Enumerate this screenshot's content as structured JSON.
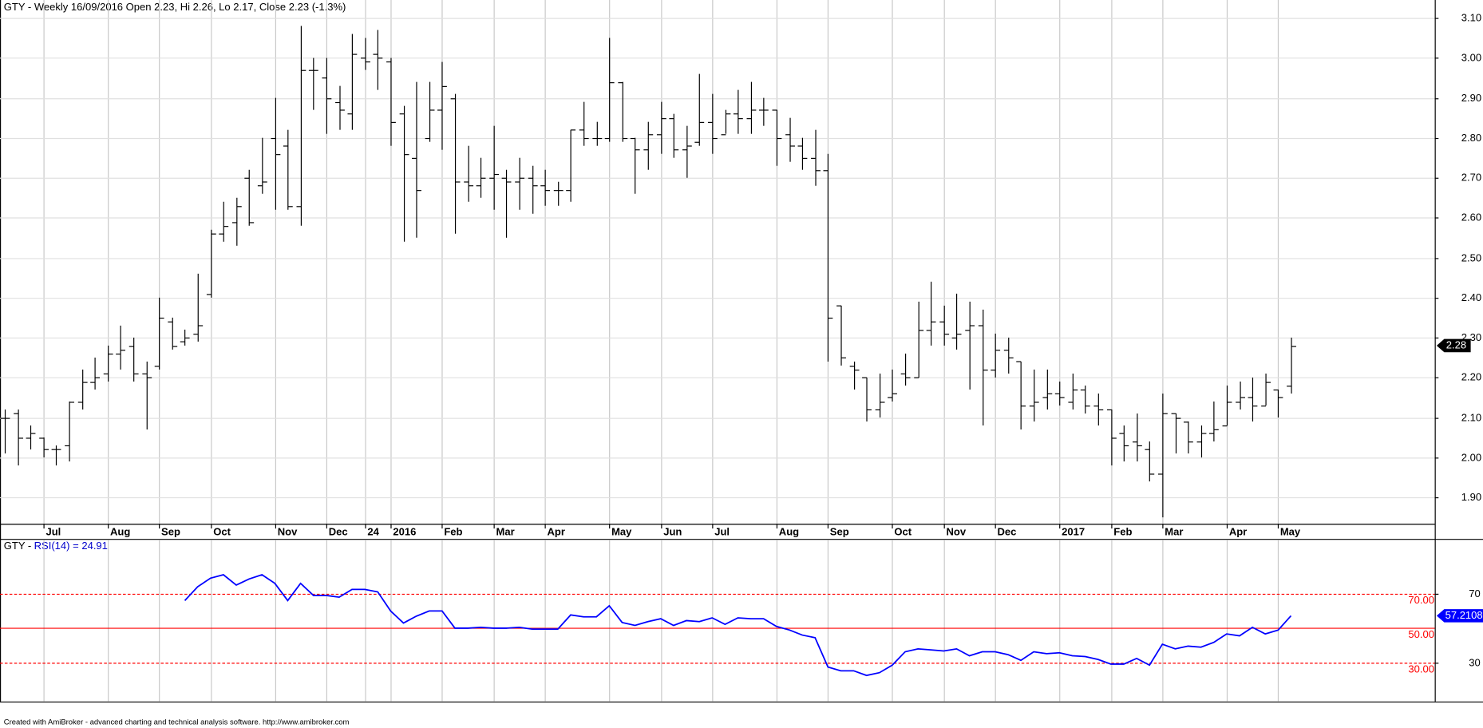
{
  "chart_data": [
    {
      "type": "ohlc",
      "title": "GTY - Weekly 16/09/2016 Open 2.23, Hi 2.26, Lo 2.17, Close 2.23 (-1.3%)",
      "categories": [
        null,
        null,
        null,
        "Jul",
        null,
        null,
        null,
        null,
        "Aug",
        null,
        null,
        null,
        "Sep",
        null,
        null,
        null,
        "Oct",
        null,
        null,
        null,
        null,
        "Nov",
        null,
        null,
        null,
        "Dec",
        null,
        null,
        "24",
        null,
        "2016",
        null,
        null,
        null,
        "Feb",
        null,
        null,
        null,
        "Mar",
        null,
        null,
        null,
        "Apr",
        null,
        null,
        null,
        null,
        "May",
        null,
        null,
        null,
        "Jun",
        null,
        null,
        null,
        "Jul",
        null,
        null,
        null,
        null,
        "Aug",
        null,
        null,
        null,
        "Sep",
        null,
        null,
        null,
        null,
        "Oct",
        null,
        null,
        null,
        "Nov",
        null,
        null,
        null,
        "Dec",
        null,
        null,
        null,
        null,
        "2017",
        null,
        null,
        null,
        "Feb",
        null,
        null,
        null,
        "Mar",
        null,
        null,
        null,
        null,
        "Apr",
        null,
        null,
        null,
        "May",
        null
      ],
      "open": [
        2.1,
        2.11,
        2.05,
        2.05,
        2.02,
        2.03,
        2.14,
        2.19,
        2.21,
        2.26,
        2.28,
        2.21,
        2.23,
        2.34,
        2.29,
        2.31,
        2.41,
        2.56,
        2.59,
        2.7,
        2.68,
        2.8,
        2.78,
        2.63,
        2.97,
        2.95,
        2.89,
        2.86,
        3.0,
        3.01,
        2.99,
        2.86,
        2.75,
        2.8,
        2.87,
        2.9,
        2.69,
        2.68,
        2.7,
        2.7,
        2.69,
        2.7,
        2.68,
        2.67,
        2.67,
        2.82,
        2.8,
        2.8,
        2.94,
        2.8,
        2.77,
        2.81,
        2.85,
        2.77,
        2.79,
        2.84,
        2.81,
        2.86,
        2.85,
        2.87,
        2.87,
        2.81,
        2.78,
        2.75,
        2.72,
        2.38,
        2.23,
        2.2,
        2.12,
        2.15,
        2.21,
        2.2,
        2.32,
        2.34,
        2.3,
        2.32,
        2.33,
        2.22,
        2.27,
        2.24,
        2.13,
        2.15,
        2.16,
        2.14,
        2.17,
        2.13,
        2.12,
        2.06,
        2.04,
        2.02,
        1.96,
        2.11,
        2.09,
        2.04,
        2.06,
        2.08,
        2.14,
        2.15,
        2.13,
        2.17,
        2.18
      ],
      "high": [
        2.12,
        2.12,
        2.08,
        2.05,
        2.03,
        2.14,
        2.22,
        2.25,
        2.28,
        2.33,
        2.3,
        2.24,
        2.4,
        2.35,
        2.32,
        2.46,
        2.57,
        2.64,
        2.65,
        2.72,
        2.8,
        2.9,
        2.82,
        3.08,
        3.0,
        3.0,
        2.93,
        3.06,
        3.05,
        3.07,
        3.0,
        2.88,
        2.94,
        2.94,
        2.99,
        2.91,
        2.78,
        2.75,
        2.83,
        2.72,
        2.75,
        2.73,
        2.72,
        2.69,
        2.82,
        2.89,
        2.84,
        3.05,
        2.94,
        2.8,
        2.84,
        2.89,
        2.86,
        2.83,
        2.96,
        2.91,
        2.87,
        2.92,
        2.94,
        2.9,
        2.87,
        2.85,
        2.8,
        2.82,
        2.76,
        2.38,
        2.24,
        2.2,
        2.21,
        2.22,
        2.26,
        2.39,
        2.44,
        2.38,
        2.41,
        2.39,
        2.37,
        2.31,
        2.3,
        2.24,
        2.22,
        2.22,
        2.19,
        2.21,
        2.18,
        2.16,
        2.12,
        2.08,
        2.11,
        2.04,
        2.16,
        2.11,
        2.09,
        2.08,
        2.14,
        2.18,
        2.19,
        2.2,
        2.21,
        2.17,
        2.3
      ],
      "low": [
        2.01,
        1.98,
        2.02,
        2.0,
        1.98,
        1.99,
        2.12,
        2.17,
        2.19,
        2.22,
        2.19,
        2.07,
        2.22,
        2.27,
        2.28,
        2.29,
        2.4,
        2.54,
        2.53,
        2.58,
        2.66,
        2.62,
        2.62,
        2.58,
        2.87,
        2.81,
        2.82,
        2.82,
        2.97,
        2.92,
        2.78,
        2.54,
        2.55,
        2.79,
        2.77,
        2.56,
        2.64,
        2.65,
        2.62,
        2.55,
        2.62,
        2.61,
        2.63,
        2.63,
        2.64,
        2.78,
        2.78,
        2.79,
        2.79,
        2.66,
        2.72,
        2.76,
        2.75,
        2.7,
        2.78,
        2.76,
        2.81,
        2.81,
        2.81,
        2.83,
        2.73,
        2.74,
        2.72,
        2.68,
        2.24,
        2.23,
        2.17,
        2.09,
        2.1,
        2.14,
        2.18,
        2.2,
        2.28,
        2.28,
        2.27,
        2.17,
        2.08,
        2.2,
        2.21,
        2.07,
        2.09,
        2.12,
        2.13,
        2.12,
        2.11,
        2.08,
        1.98,
        1.99,
        1.99,
        1.94,
        1.85,
        2.01,
        2.01,
        2.0,
        2.04,
        2.08,
        2.12,
        2.09,
        2.13,
        2.1,
        2.16
      ],
      "close": [
        2.1,
        2.05,
        2.06,
        2.02,
        2.02,
        2.14,
        2.19,
        2.2,
        2.26,
        2.27,
        2.21,
        2.2,
        2.35,
        2.28,
        2.3,
        2.33,
        2.56,
        2.58,
        2.63,
        2.59,
        2.69,
        2.76,
        2.63,
        2.97,
        2.97,
        2.9,
        2.87,
        3.01,
        2.99,
        3.0,
        2.84,
        2.76,
        2.67,
        2.87,
        2.93,
        2.69,
        2.68,
        2.7,
        2.71,
        2.69,
        2.7,
        2.68,
        2.67,
        2.67,
        2.82,
        2.8,
        2.8,
        2.94,
        2.8,
        2.77,
        2.81,
        2.85,
        2.77,
        2.78,
        2.84,
        2.8,
        2.86,
        2.85,
        2.87,
        2.87,
        2.8,
        2.78,
        2.75,
        2.72,
        2.35,
        2.25,
        2.22,
        2.12,
        2.14,
        2.16,
        2.2,
        2.32,
        2.34,
        2.31,
        2.31,
        2.33,
        2.22,
        2.27,
        2.25,
        2.13,
        2.14,
        2.16,
        2.15,
        2.17,
        2.13,
        2.12,
        2.05,
        2.03,
        2.03,
        1.96,
        2.11,
        2.1,
        2.04,
        2.06,
        2.07,
        2.14,
        2.15,
        2.13,
        2.19,
        2.15,
        2.28
      ],
      "color": "#000000",
      "ylim": [
        1.834,
        3.145
      ],
      "yticks": [
        {
          "value": 1.9,
          "label": "1.90"
        },
        {
          "value": 2.0,
          "label": "2.00"
        },
        {
          "value": 2.1,
          "label": "2.10"
        },
        {
          "value": 2.2,
          "label": "2.20"
        },
        {
          "value": 2.3,
          "label": "2.30"
        },
        {
          "value": 2.4,
          "label": "2.40"
        },
        {
          "value": 2.5,
          "label": "2.50"
        },
        {
          "value": 2.6,
          "label": "2.60"
        },
        {
          "value": 2.7,
          "label": "2.70"
        },
        {
          "value": 2.8,
          "label": "2.80"
        },
        {
          "value": 2.9,
          "label": "2.90"
        },
        {
          "value": 3.0,
          "label": "3.00"
        },
        {
          "value": 3.1,
          "label": "3.10"
        }
      ],
      "grid": true,
      "last_value_label": "2.28"
    },
    {
      "type": "line",
      "title": "GTY -",
      "subtitle": "RSI(14) = 24.91",
      "color": "#0000ff",
      "values": [
        null,
        null,
        null,
        null,
        null,
        null,
        null,
        null,
        null,
        null,
        null,
        null,
        null,
        null,
        66,
        74,
        79,
        81,
        75,
        78.5,
        81,
        76,
        66,
        76,
        69,
        69,
        68,
        72.5,
        72.5,
        71,
        60,
        53,
        57,
        60,
        60,
        50,
        50,
        50.5,
        50,
        50,
        50.5,
        49.5,
        49.5,
        49.5,
        57.7,
        56.6,
        56.6,
        63,
        53.3,
        51.6,
        53.8,
        55.5,
        51.6,
        54.4,
        53.8,
        56,
        52.2,
        56,
        55.5,
        55.5,
        51,
        49,
        46,
        44.5,
        27.5,
        25.3,
        25.3,
        22.6,
        24.2,
        28.6,
        36.3,
        38,
        37.4,
        36.8,
        38,
        34,
        36.3,
        36.3,
        34.7,
        31.4,
        36.3,
        35.2,
        35.8,
        34,
        33.6,
        31.9,
        29.2,
        29.2,
        32.5,
        28.6,
        40.7,
        38,
        39.6,
        39,
        41.8,
        46.7,
        45.6,
        50.5,
        46.7,
        48.9,
        57.2108
      ],
      "ylim": [
        7.5,
        101.2
      ],
      "yticks": [
        30,
        70
      ],
      "ref_color": "#ff0000",
      "ref_lines": [
        {
          "value": 70,
          "label": "70.00",
          "style": "dashed"
        },
        {
          "value": 50,
          "label": "50.00",
          "style": "solid"
        },
        {
          "value": 30,
          "label": "30.00",
          "style": "dashed"
        }
      ],
      "last_value_label": "57.2108"
    }
  ],
  "footer": "Created with AmiBroker - advanced charting and technical analysis software. http://www.amibroker.com"
}
